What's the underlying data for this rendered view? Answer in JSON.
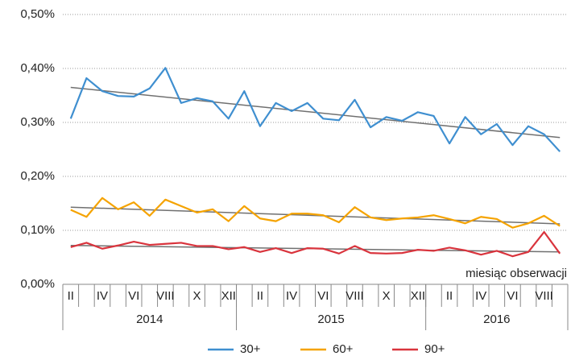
{
  "chart_data": {
    "type": "line",
    "axis_label": "miesiąc obserwacji",
    "categories": [
      "II",
      null,
      "IV",
      null,
      "VI",
      null,
      "VIII",
      null,
      "X",
      null,
      "XII",
      null,
      "II",
      null,
      "IV",
      null,
      "VI",
      null,
      "VIII",
      null,
      "X",
      null,
      "XII",
      null,
      "II",
      null,
      "IV",
      null,
      "VI",
      null,
      "VIII",
      null
    ],
    "groups": [
      {
        "label": "2014",
        "span": 11
      },
      {
        "label": "2015",
        "span": 12
      },
      {
        "label": "2016",
        "span": 9
      }
    ],
    "series": [
      {
        "name": "30+",
        "color": "#3f8fd0",
        "trend": [
          0.365,
          0.272
        ],
        "values": [
          0.307,
          0.382,
          0.358,
          0.349,
          0.348,
          0.363,
          0.401,
          0.336,
          0.345,
          0.339,
          0.307,
          0.358,
          0.293,
          0.336,
          0.321,
          0.336,
          0.307,
          0.304,
          0.342,
          0.291,
          0.31,
          0.303,
          0.319,
          0.312,
          0.261,
          0.31,
          0.278,
          0.297,
          0.258,
          0.293,
          0.278,
          0.246
        ]
      },
      {
        "name": "60+",
        "color": "#f5a300",
        "trend": [
          0.143,
          0.112
        ],
        "values": [
          0.138,
          0.125,
          0.16,
          0.139,
          0.152,
          0.127,
          0.157,
          0.145,
          0.133,
          0.139,
          0.117,
          0.145,
          0.122,
          0.117,
          0.131,
          0.131,
          0.128,
          0.115,
          0.143,
          0.124,
          0.119,
          0.122,
          0.124,
          0.128,
          0.121,
          0.113,
          0.125,
          0.121,
          0.105,
          0.113,
          0.127,
          0.108
        ]
      },
      {
        "name": "90+",
        "color": "#d9343d",
        "trend": [
          0.072,
          0.06
        ],
        "values": [
          0.069,
          0.077,
          0.066,
          0.072,
          0.079,
          0.073,
          0.075,
          0.077,
          0.071,
          0.071,
          0.065,
          0.069,
          0.06,
          0.067,
          0.058,
          0.067,
          0.066,
          0.057,
          0.071,
          0.058,
          0.057,
          0.058,
          0.064,
          0.062,
          0.068,
          0.063,
          0.055,
          0.062,
          0.052,
          0.06,
          0.097,
          0.057
        ]
      }
    ],
    "trend_color": "#707070",
    "ylim": [
      0,
      0.5
    ],
    "yticks": [
      {
        "value": 0,
        "label": "0,00%"
      },
      {
        "value": 0.1,
        "label": "0,10%"
      },
      {
        "value": 0.2,
        "label": "0,20%"
      },
      {
        "value": 0.3,
        "label": "0,30%"
      },
      {
        "value": 0.4,
        "label": "0,40%"
      },
      {
        "value": 0.5,
        "label": "0,50%"
      }
    ],
    "grid": true,
    "legend": "bottom"
  }
}
